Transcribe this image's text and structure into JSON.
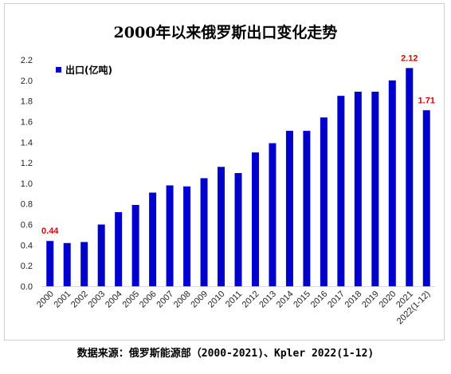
{
  "chart_data": {
    "type": "bar",
    "title": "2000年以来俄罗斯出口变化走势",
    "categories": [
      "2000",
      "2001",
      "2002",
      "2003",
      "2004",
      "2005",
      "2006",
      "2007",
      "2008",
      "2009",
      "2010",
      "2011",
      "2012",
      "2013",
      "2014",
      "2015",
      "2016",
      "2017",
      "2018",
      "2019",
      "2020",
      "2021",
      "2022(1-12)"
    ],
    "series": [
      {
        "name": "出口(亿吨)",
        "values": [
          0.44,
          0.42,
          0.43,
          0.6,
          0.72,
          0.79,
          0.91,
          0.98,
          0.97,
          1.05,
          1.16,
          1.1,
          1.3,
          1.39,
          1.51,
          1.51,
          1.64,
          1.85,
          1.89,
          1.89,
          2.0,
          2.12,
          1.71
        ],
        "color": "#0000cc"
      }
    ],
    "data_labels": [
      {
        "index": 0,
        "text": "0.44"
      },
      {
        "index": 21,
        "text": "2.12"
      },
      {
        "index": 22,
        "text": "1.71"
      }
    ],
    "data_label_color": "#e00000",
    "ylim": [
      0,
      2.2
    ],
    "yticks": [
      "0.0",
      "0.2",
      "0.4",
      "0.6",
      "0.8",
      "1.0",
      "1.2",
      "1.4",
      "1.6",
      "1.8",
      "2.0",
      "2.2"
    ],
    "xlabel": "",
    "ylabel": "",
    "grid": false,
    "legend_position": "top-left"
  },
  "source_note": "数据来源：俄罗斯能源部（2000-2021)、Kpler 2022(1-12)"
}
